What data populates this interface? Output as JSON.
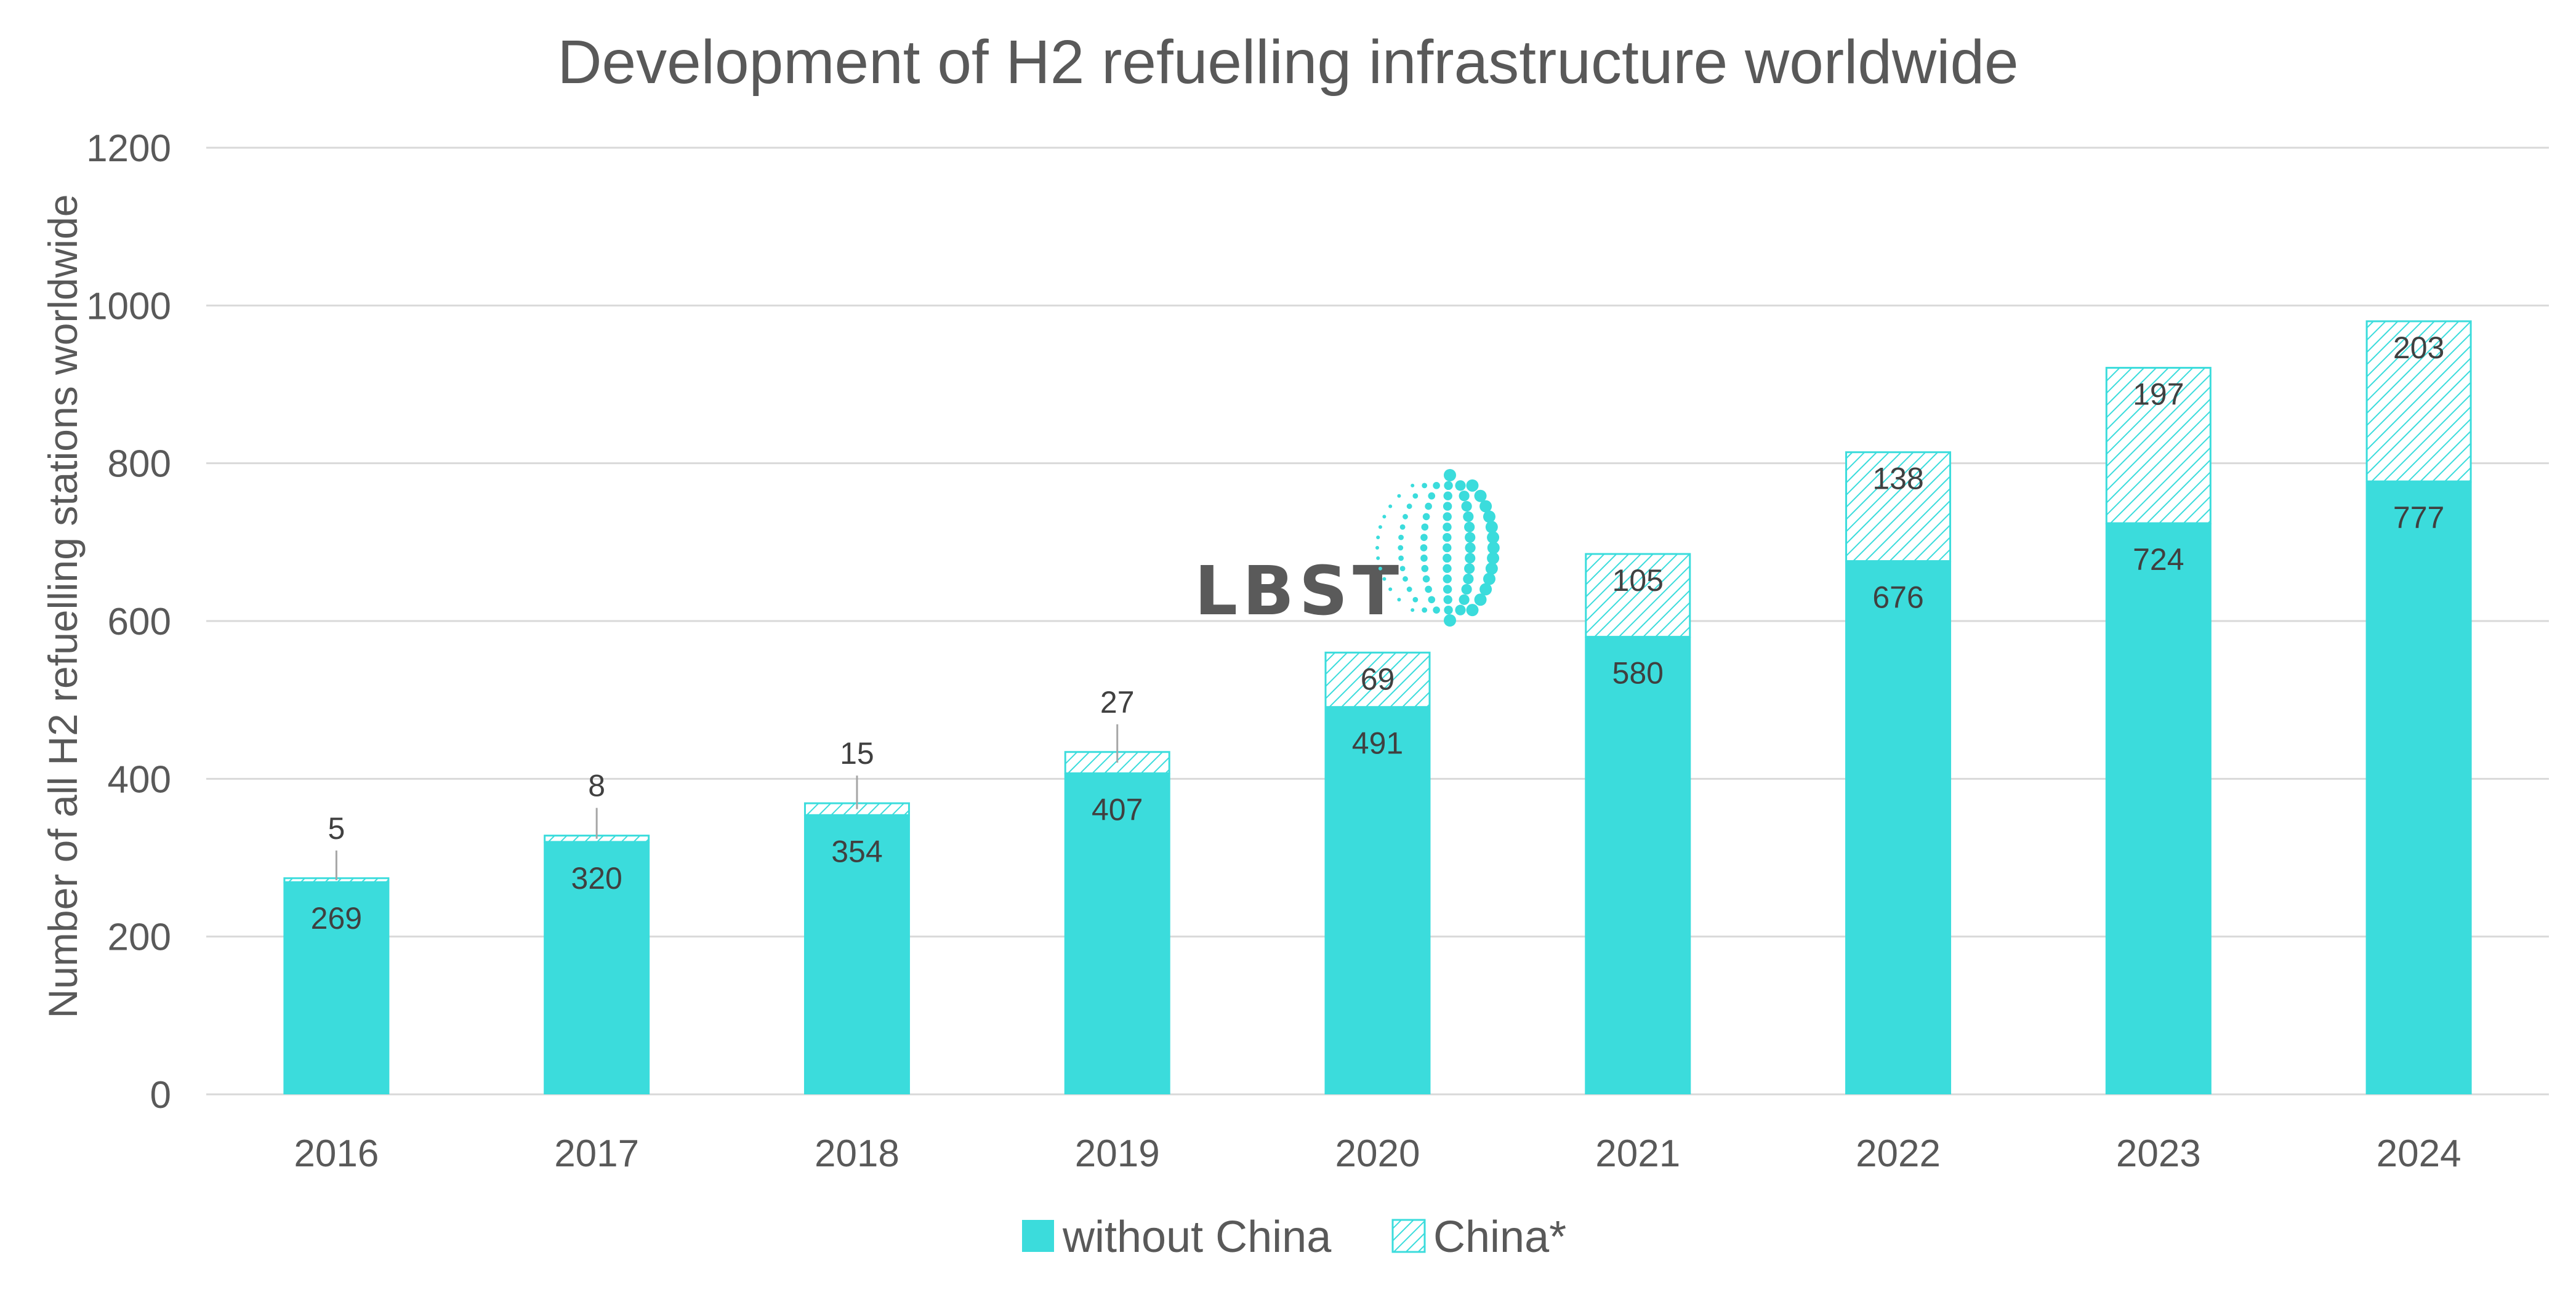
{
  "chart_data": {
    "type": "bar",
    "stacked": true,
    "title": "Development of H2 refuelling infrastructure worldwide",
    "ylabel": "Number of all H2 refuelling stations worldwide",
    "xlabel": "",
    "ylim": [
      0,
      1200
    ],
    "yticks": [
      "0",
      "200",
      "400",
      "600",
      "800",
      "1000",
      "1200"
    ],
    "categories": [
      "2016",
      "2017",
      "2018",
      "2019",
      "2020",
      "2021",
      "2022",
      "2023",
      "2024"
    ],
    "series": [
      {
        "name": "without China",
        "values": [
          269,
          320,
          354,
          407,
          491,
          580,
          676,
          724,
          777
        ],
        "color": "#3bdcdc",
        "pattern": "solid"
      },
      {
        "name": "China*",
        "values": [
          5,
          8,
          15,
          27,
          69,
          105,
          138,
          197,
          203
        ],
        "color": "#3bdcdc",
        "pattern": "hatched"
      }
    ],
    "grid": true,
    "legend": "bottom-center"
  },
  "logo": {
    "text": "LBST",
    "icon": "globe-dots-icon"
  }
}
